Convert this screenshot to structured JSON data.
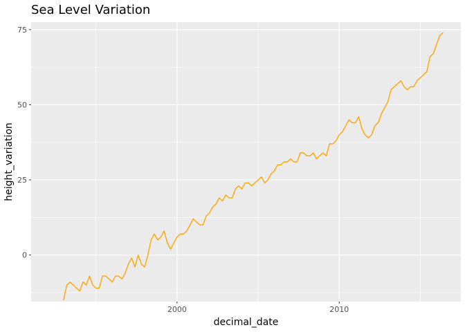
{
  "chart_data": {
    "type": "line",
    "title": "Sea Level Variation",
    "xlabel": "decimal_date",
    "ylabel": "height_variation",
    "xlim": [
      1991.0,
      2017.5
    ],
    "ylim": [
      -15.5,
      77.5
    ],
    "x_ticks": [
      2000,
      2010
    ],
    "x_tick_labels": [
      "2000",
      "2010"
    ],
    "x_minor_ticks": [
      1995,
      2005,
      2015
    ],
    "y_ticks": [
      0,
      25,
      50,
      75
    ],
    "y_tick_labels": [
      "0",
      "25",
      "50",
      "75"
    ],
    "y_minor_ticks": [
      -12.5,
      12.5,
      37.5,
      62.5
    ],
    "grid": true,
    "legend": "none",
    "colors": {
      "line": "#FFA500",
      "panel": "#EBEBEB",
      "grid": "#FFFFFF",
      "tick_label": "#4D4D4D"
    },
    "series": [
      {
        "x": [
          1993.0,
          1993.2,
          1993.4,
          1993.6,
          1993.8,
          1994.0,
          1994.2,
          1994.4,
          1994.6,
          1994.8,
          1995.0,
          1995.2,
          1995.4,
          1995.6,
          1995.8,
          1996.0,
          1996.2,
          1996.4,
          1996.6,
          1996.8,
          1997.0,
          1997.2,
          1997.4,
          1997.6,
          1997.8,
          1998.0,
          1998.2,
          1998.4,
          1998.6,
          1998.8,
          1999.0,
          1999.2,
          1999.4,
          1999.6,
          1999.8,
          2000.0,
          2000.2,
          2000.4,
          2000.6,
          2000.8,
          2001.0,
          2001.2,
          2001.4,
          2001.6,
          2001.8,
          2002.0,
          2002.2,
          2002.4,
          2002.6,
          2002.8,
          2003.0,
          2003.2,
          2003.4,
          2003.6,
          2003.8,
          2004.0,
          2004.2,
          2004.4,
          2004.6,
          2004.8,
          2005.0,
          2005.2,
          2005.4,
          2005.6,
          2005.8,
          2006.0,
          2006.2,
          2006.4,
          2006.6,
          2006.8,
          2007.0,
          2007.2,
          2007.4,
          2007.6,
          2007.8,
          2008.0,
          2008.2,
          2008.4,
          2008.6,
          2008.8,
          2009.0,
          2009.2,
          2009.4,
          2009.6,
          2009.8,
          2010.0,
          2010.2,
          2010.4,
          2010.6,
          2010.8,
          2011.0,
          2011.2,
          2011.4,
          2011.6,
          2011.8,
          2012.0,
          2012.2,
          2012.4,
          2012.6,
          2012.8,
          2013.0,
          2013.2,
          2013.4,
          2013.6,
          2013.8,
          2014.0,
          2014.2,
          2014.4,
          2014.6,
          2014.8,
          2015.0,
          2015.2,
          2015.4,
          2015.6,
          2015.8,
          2016.0,
          2016.2,
          2016.4
        ],
        "y": [
          -15,
          -10,
          -9,
          -10,
          -11,
          -12,
          -9,
          -10,
          -7,
          -10,
          -11,
          -11,
          -7,
          -7,
          -8,
          -9,
          -7,
          -7,
          -8,
          -6,
          -3,
          -1,
          -4,
          0,
          -3,
          -4,
          0,
          5,
          7,
          5,
          6,
          8,
          4,
          2,
          4,
          6,
          7,
          7,
          8,
          10,
          12,
          11,
          10,
          10,
          13,
          14,
          16,
          17,
          19,
          18,
          20,
          19,
          19,
          22,
          23,
          22,
          24,
          24,
          23,
          24,
          25,
          26,
          24,
          25,
          27,
          28,
          30,
          30,
          31,
          31,
          32,
          31,
          31,
          34,
          34,
          33,
          33,
          34,
          32,
          33,
          34,
          33,
          37,
          37,
          38,
          40,
          41,
          43,
          45,
          44,
          44,
          46,
          42,
          40,
          39,
          40,
          43,
          44,
          47,
          49,
          51,
          55,
          56,
          57,
          58,
          56,
          55,
          56,
          56,
          58,
          59,
          60,
          61,
          66,
          67,
          70,
          73,
          74
        ]
      }
    ]
  }
}
